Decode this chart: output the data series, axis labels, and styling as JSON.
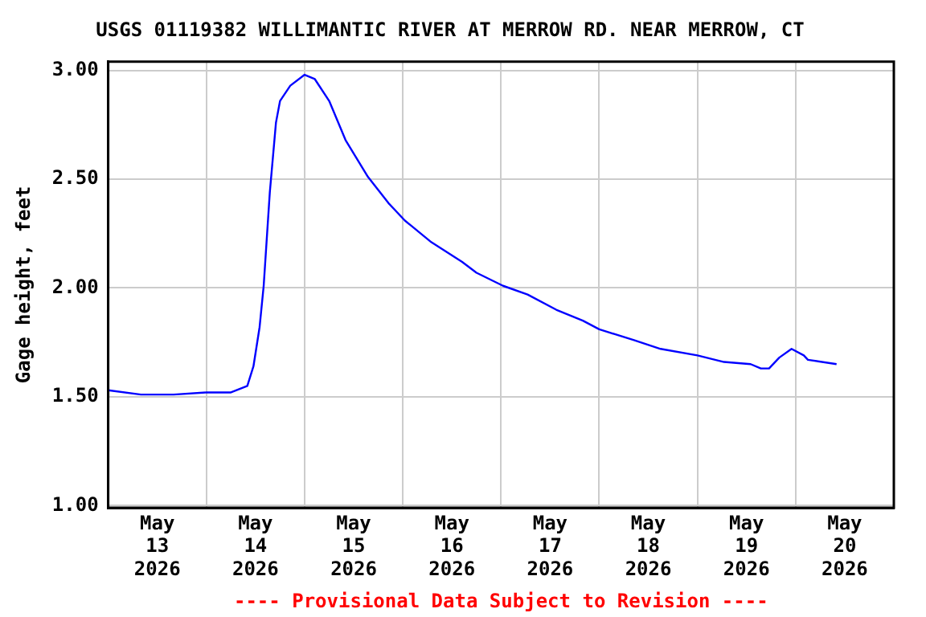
{
  "chart_data": {
    "type": "line",
    "title": "USGS 01119382 WILLIMANTIC RIVER AT MERROW RD. NEAR MERROW, CT",
    "ylabel": "Gage height, feet",
    "annotations": [
      "---- Provisional Data Subject to Revision ----"
    ],
    "x": [
      "2026-05-13T00:00",
      "2026-05-13T08:00",
      "2026-05-13T16:00",
      "2026-05-14T00:00",
      "2026-05-14T06:00",
      "2026-05-14T10:00",
      "2026-05-14T11:30",
      "2026-05-14T13:00",
      "2026-05-14T14:00",
      "2026-05-14T15:30",
      "2026-05-14T17:00",
      "2026-05-14T18:00",
      "2026-05-14T20:30",
      "2026-05-15T00:00",
      "2026-05-15T02:30",
      "2026-05-15T06:00",
      "2026-05-15T10:00",
      "2026-05-15T15:30",
      "2026-05-15T20:30",
      "2026-05-16T00:30",
      "2026-05-16T07:00",
      "2026-05-16T14:30",
      "2026-05-16T18:00",
      "2026-05-17T00:30",
      "2026-05-17T06:30",
      "2026-05-17T13:30",
      "2026-05-17T20:00",
      "2026-05-18T00:00",
      "2026-05-18T08:30",
      "2026-05-18T15:00",
      "2026-05-19T00:00",
      "2026-05-19T06:30",
      "2026-05-19T13:00",
      "2026-05-19T15:30",
      "2026-05-19T17:30",
      "2026-05-19T20:00",
      "2026-05-19T23:00",
      "2026-05-20T02:00",
      "2026-05-20T03:00",
      "2026-05-20T10:00"
    ],
    "series": [
      {
        "color": "#0000ff",
        "values": [
          1.53,
          1.51,
          1.51,
          1.52,
          1.52,
          1.55,
          1.64,
          1.82,
          2.01,
          2.44,
          2.76,
          2.86,
          2.93,
          2.98,
          2.96,
          2.86,
          2.68,
          2.51,
          2.39,
          2.31,
          2.21,
          2.12,
          2.07,
          2.01,
          1.97,
          1.9,
          1.85,
          1.81,
          1.76,
          1.72,
          1.69,
          1.66,
          1.65,
          1.63,
          1.63,
          1.68,
          1.72,
          1.69,
          1.67,
          1.65
        ]
      }
    ],
    "xlim": [
      "2026-05-13T00:00",
      "2026-05-21T00:00"
    ],
    "xticks": [
      {
        "value": "2026-05-13T12:00",
        "label": "May\n13\n2026"
      },
      {
        "value": "2026-05-14T00:00",
        "label": null
      },
      {
        "value": "2026-05-14T12:00",
        "label": "May\n14\n2026"
      },
      {
        "value": "2026-05-15T00:00",
        "label": null
      },
      {
        "value": "2026-05-15T12:00",
        "label": "May\n15\n2026"
      },
      {
        "value": "2026-05-16T00:00",
        "label": null
      },
      {
        "value": "2026-05-16T12:00",
        "label": "May\n16\n2026"
      },
      {
        "value": "2026-05-17T00:00",
        "label": null
      },
      {
        "value": "2026-05-17T12:00",
        "label": "May\n17\n2026"
      },
      {
        "value": "2026-05-18T00:00",
        "label": null
      },
      {
        "value": "2026-05-18T12:00",
        "label": "May\n18\n2026"
      },
      {
        "value": "2026-05-19T00:00",
        "label": null
      },
      {
        "value": "2026-05-19T12:00",
        "label": "May\n19\n2026"
      },
      {
        "value": "2026-05-20T00:00",
        "label": null
      },
      {
        "value": "2026-05-20T12:00",
        "label": "May\n20\n2026"
      }
    ],
    "ylim": [
      0.99,
      3.04
    ],
    "yticks": [
      {
        "value": 1,
        "label": "1.00"
      },
      {
        "value": 1.5,
        "label": "1.50"
      },
      {
        "value": 2,
        "label": "2.00"
      },
      {
        "value": 2.5,
        "label": "2.50"
      },
      {
        "value": 3,
        "label": "3.00"
      }
    ],
    "grid": true,
    "legend": false,
    "marker": "none",
    "line_style": "solid"
  }
}
